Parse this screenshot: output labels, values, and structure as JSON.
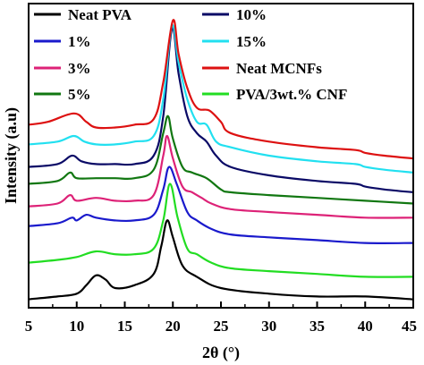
{
  "chart_data": {
    "type": "line",
    "xlabel": "2θ (°)",
    "ylabel": "Intensity (a.u)",
    "xlim": [
      5,
      45
    ],
    "xticks": [
      5,
      10,
      15,
      20,
      25,
      30,
      35,
      40,
      45
    ],
    "yticks_shown": false,
    "grid": false,
    "legend_position": "top",
    "series": [
      {
        "name": "Neat PVA",
        "color": "#000000",
        "x": [
          5,
          8,
          10,
          11,
          12,
          13,
          14,
          16,
          18,
          18.8,
          19.4,
          20,
          21,
          22.5,
          25,
          30,
          35,
          40,
          45
        ],
        "y": [
          3,
          4,
          5,
          8,
          11.5,
          10,
          7,
          8,
          12,
          22,
          31,
          25,
          15,
          11,
          7,
          5,
          4,
          4,
          3
        ]
      },
      {
        "name": "PVA/3wt.% CNF",
        "color": "#22dd22",
        "x": [
          5,
          8,
          10,
          12,
          14,
          16,
          18,
          19,
          19.7,
          20.5,
          21.5,
          22.5,
          24,
          26,
          30,
          35,
          40,
          45
        ],
        "y": [
          16,
          17,
          18,
          20,
          19,
          19,
          21,
          31,
          44,
          32,
          21,
          19,
          16,
          14,
          13,
          12,
          11,
          11
        ]
      },
      {
        "name": "1%",
        "color": "#1a1acc",
        "x": [
          5,
          8,
          9.5,
          10,
          11,
          12,
          14,
          16,
          18,
          19,
          19.6,
          20.4,
          21.5,
          22.5,
          24,
          26,
          30,
          35,
          40,
          45
        ],
        "y": [
          29,
          30,
          32,
          31,
          33,
          32,
          31,
          31,
          33,
          42,
          50,
          44,
          34,
          31,
          28,
          26,
          25,
          24,
          23,
          23
        ]
      },
      {
        "name": "3%",
        "color": "#dd2277",
        "x": [
          5,
          8,
          9.3,
          10,
          12,
          14,
          16,
          18,
          19,
          19.4,
          20,
          21,
          22,
          23,
          24,
          26,
          30,
          35,
          40,
          45
        ],
        "y": [
          36,
          37,
          40,
          38,
          39,
          38,
          38,
          40,
          54,
          61,
          53,
          43,
          41,
          39,
          37,
          35,
          34,
          33,
          32,
          32
        ]
      },
      {
        "name": "5%",
        "color": "#117711",
        "x": [
          5,
          8,
          9.3,
          10,
          12,
          14,
          16,
          18,
          19,
          19.5,
          20,
          21,
          22,
          23.5,
          25,
          26,
          30,
          35,
          40,
          45
        ],
        "y": [
          44,
          45,
          48,
          46,
          46,
          46,
          46,
          49,
          62,
          68,
          60,
          50,
          48,
          46,
          42,
          41,
          40,
          39,
          38,
          37
        ]
      },
      {
        "name": "10%",
        "color": "#0a0a66",
        "x": [
          5,
          8,
          9.5,
          10.5,
          12,
          14,
          16,
          18,
          19,
          19.9,
          20.6,
          21.5,
          22.5,
          23.5,
          24.5,
          26,
          30,
          35,
          39,
          40,
          42,
          45
        ],
        "y": [
          50,
          51,
          54,
          52,
          51,
          51,
          51,
          54,
          68,
          99,
          83,
          68,
          62,
          59,
          54,
          50,
          47,
          45,
          44,
          43,
          42,
          41
        ]
      },
      {
        "name": "15%",
        "color": "#22e0f0",
        "x": [
          5,
          8,
          9.7,
          10.8,
          12,
          14,
          16,
          18,
          19,
          19.9,
          20.6,
          21.5,
          22.5,
          23.5,
          24.5,
          26,
          30,
          35,
          39,
          40,
          42,
          45
        ],
        "y": [
          58,
          59,
          61,
          59,
          58,
          58,
          59,
          61,
          74,
          100,
          87,
          74,
          66,
          65,
          59,
          57,
          54,
          52,
          51,
          50,
          49,
          48
        ]
      },
      {
        "name": "Neat MCNFs",
        "color": "#dd1111",
        "x": [
          5,
          7,
          9.7,
          11,
          12,
          14,
          16,
          18,
          19,
          20,
          20.6,
          21.5,
          22.5,
          23.8,
          25,
          26,
          30,
          35,
          39,
          40,
          42,
          45
        ],
        "y": [
          65,
          66,
          69,
          66,
          64,
          64,
          65,
          67,
          80,
          102,
          90,
          78,
          71,
          70,
          66,
          62,
          59,
          57,
          56,
          55,
          54,
          53
        ]
      }
    ],
    "legend_order": [
      "Neat PVA",
      "10%",
      "1%",
      "15%",
      "3%",
      "Neat MCNFs",
      "5%",
      "PVA/3wt.% CNF"
    ]
  }
}
